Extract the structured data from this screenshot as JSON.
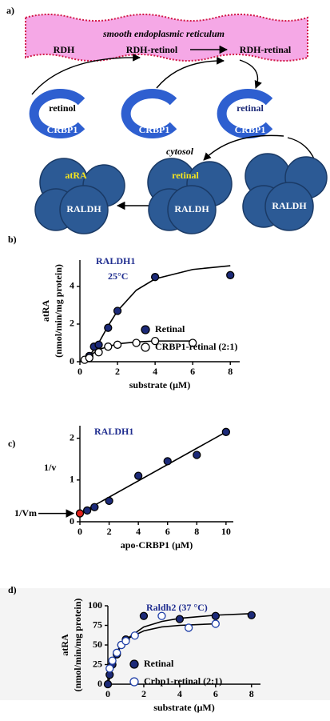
{
  "diagram": {
    "label": "a)",
    "er": "smooth endoplasmic reticulum",
    "rdh": "RDH",
    "rdh_retinol": "RDH-retinol",
    "rdh_retinal": "RDH-retinal",
    "cytosol": "cytosol",
    "crbp1": [
      {
        "ligand": "retinol",
        "label": "CRBP1"
      },
      {
        "label": "CRBP1"
      },
      {
        "ligand": "retinal",
        "label": "CRBP1"
      }
    ],
    "raldh": [
      {
        "ligand": "atRA",
        "label": "RALDH"
      },
      {
        "ligand": "retinal",
        "label": "RALDH"
      },
      {
        "label": "RALDH"
      }
    ]
  },
  "chart_data": [
    {
      "type": "scatter",
      "label": "b)",
      "annotations": [
        "RALDH1",
        "25°C"
      ],
      "x_label": "substrate (μM)",
      "y_label": [
        "atRA",
        "(nmol/min/mg protein)"
      ],
      "xlim": [
        0,
        8.5
      ],
      "ylim": [
        0,
        5.4
      ],
      "xticks": [
        0,
        2,
        4,
        6,
        8
      ],
      "yticks": [
        0,
        2,
        4
      ],
      "series": [
        {
          "name": "Retinal",
          "color": "#1c2a78",
          "filled": true,
          "x": [
            0.5,
            0.75,
            1,
            1.5,
            2,
            4,
            8
          ],
          "values": [
            0.3,
            0.8,
            0.9,
            1.8,
            2.7,
            4.5,
            4.6
          ]
        },
        {
          "name": "CRBP1-retinal (2:1)",
          "color": "#000000",
          "filled": false,
          "x": [
            0.25,
            0.5,
            1,
            1.5,
            2,
            3,
            4,
            6
          ],
          "values": [
            0.1,
            0.2,
            0.5,
            0.8,
            0.9,
            1.0,
            1.1,
            1.0
          ]
        },
        {
          "style": "line",
          "color": "#000000",
          "x": [
            0,
            0.5,
            1,
            1.5,
            2,
            3,
            4,
            6,
            8
          ],
          "values": [
            0,
            0.3,
            1.0,
            1.9,
            2.7,
            3.8,
            4.4,
            4.9,
            5.1
          ]
        },
        {
          "style": "line",
          "color": "#000000",
          "x": [
            0,
            0.5,
            1,
            2,
            3,
            4,
            6
          ],
          "values": [
            0,
            0.3,
            0.65,
            0.95,
            1.05,
            1.1,
            1.1
          ]
        }
      ]
    },
    {
      "type": "scatter",
      "label": "c)",
      "annotations": [
        "RALDH1",
        "1/v",
        "1/Vm"
      ],
      "x_label": "apo-CRBP1 (μM)",
      "xlim": [
        0,
        10.5
      ],
      "ylim": [
        0,
        2.3
      ],
      "xticks": [
        0,
        2,
        4,
        6,
        8,
        10
      ],
      "yticks": [
        0,
        1,
        2
      ],
      "series": [
        {
          "color": "#1c2a78",
          "filled": true,
          "x": [
            0.5,
            1,
            2,
            4,
            6,
            8,
            10
          ],
          "values": [
            0.27,
            0.35,
            0.5,
            1.1,
            1.45,
            1.6,
            2.15
          ]
        },
        {
          "color": "#e0201b",
          "filled": true,
          "x": [
            0
          ],
          "values": [
            0.2
          ]
        },
        {
          "style": "line",
          "color": "#000000",
          "x": [
            0,
            10
          ],
          "values": [
            0.2,
            2.15
          ]
        }
      ]
    },
    {
      "type": "scatter",
      "label": "d)",
      "annotations": [
        "Raldh2 (37 °C)"
      ],
      "x_label": "substrate (μM)",
      "y_label": [
        "atRA",
        "(nmol/min/mg protein)"
      ],
      "xlim": [
        0,
        8.5
      ],
      "ylim": [
        0,
        100
      ],
      "xticks": [
        0,
        2,
        4,
        6,
        8
      ],
      "yticks": [
        0,
        25,
        50,
        75,
        100
      ],
      "series": [
        {
          "name": "Retinal",
          "color": "#1c2a78",
          "filled": true,
          "x": [
            0,
            0.1,
            0.25,
            0.5,
            0.75,
            1,
            2,
            4,
            6,
            8
          ],
          "values": [
            0,
            12,
            25,
            38,
            50,
            57,
            87,
            83,
            87,
            88
          ]
        },
        {
          "name": "Crbp1-retinal (2:1)",
          "color": "#1f3fa8",
          "filled": false,
          "x": [
            0.1,
            0.25,
            0.5,
            0.75,
            1,
            1.5,
            3,
            4.5,
            6
          ],
          "values": [
            20,
            30,
            40,
            50,
            55,
            62,
            87,
            72,
            77
          ]
        },
        {
          "style": "line",
          "color": "#000000",
          "x": [
            0,
            0.5,
            1,
            2,
            3,
            4,
            6,
            8
          ],
          "values": [
            0,
            40,
            57,
            73,
            80,
            84,
            88,
            90
          ]
        },
        {
          "style": "line",
          "color": "#000000",
          "x": [
            0,
            0.5,
            1,
            2,
            3,
            4,
            6
          ],
          "values": [
            0,
            42,
            57,
            68,
            73,
            75,
            77
          ]
        }
      ]
    }
  ]
}
